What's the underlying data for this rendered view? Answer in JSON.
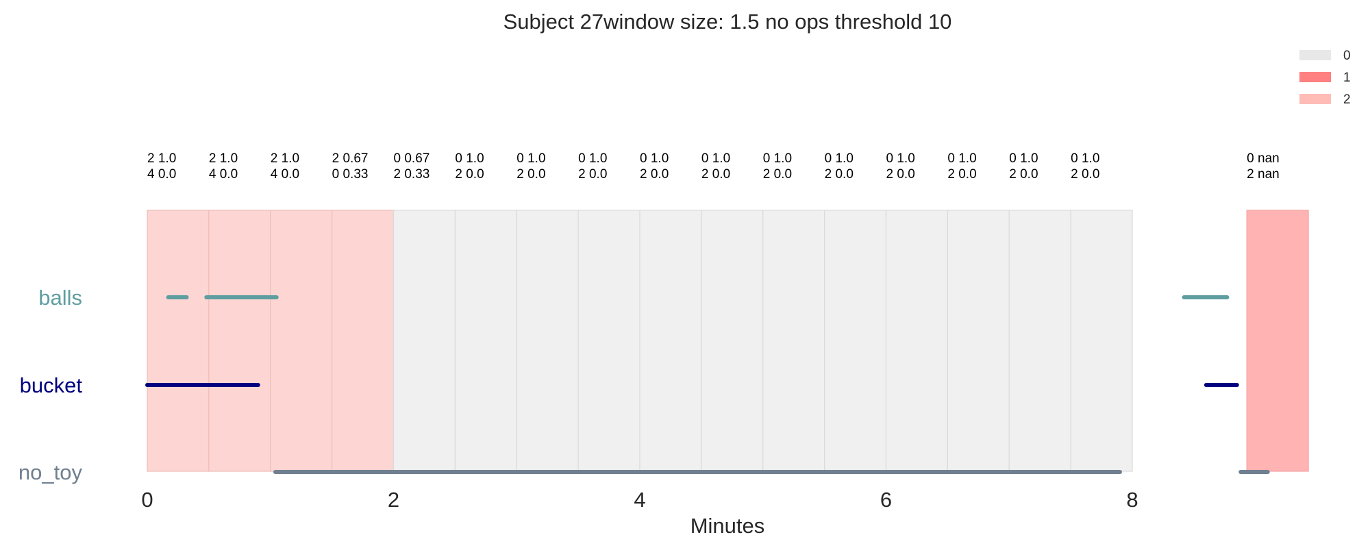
{
  "chart_data": {
    "type": "timeline",
    "title": "Subject 27window size: 1.5 no ops threshold 10",
    "xlabel": "Minutes",
    "xlim": [
      0,
      9.45
    ],
    "x_ticks": [
      0,
      2,
      4,
      6,
      8
    ],
    "grid": false,
    "legend": {
      "placement": "top-right",
      "entries": [
        {
          "label": "0",
          "color": "#e8e8e8"
        },
        {
          "label": "1",
          "color": "#ff8080"
        },
        {
          "label": "2",
          "color": "#ffbcb6"
        }
      ]
    },
    "windows": [
      {
        "start": 0.0,
        "end": 0.5,
        "category": 2,
        "line1": "2 1.0",
        "line2": "4 0.0"
      },
      {
        "start": 0.5,
        "end": 1.0,
        "category": 2,
        "line1": "2 1.0",
        "line2": "4 0.0"
      },
      {
        "start": 1.0,
        "end": 1.5,
        "category": 2,
        "line1": "2 1.0",
        "line2": "4 0.0"
      },
      {
        "start": 1.5,
        "end": 2.0,
        "category": 2,
        "line1": "2 0.67",
        "line2": "0 0.33"
      },
      {
        "start": 2.0,
        "end": 2.5,
        "category": 0,
        "line1": "0 0.67",
        "line2": "2 0.33"
      },
      {
        "start": 2.5,
        "end": 3.0,
        "category": 0,
        "line1": "0 1.0",
        "line2": "2 0.0"
      },
      {
        "start": 3.0,
        "end": 3.5,
        "category": 0,
        "line1": "0 1.0",
        "line2": "2 0.0"
      },
      {
        "start": 3.5,
        "end": 4.0,
        "category": 0,
        "line1": "0 1.0",
        "line2": "2 0.0"
      },
      {
        "start": 4.0,
        "end": 4.5,
        "category": 0,
        "line1": "0 1.0",
        "line2": "2 0.0"
      },
      {
        "start": 4.5,
        "end": 5.0,
        "category": 0,
        "line1": "0 1.0",
        "line2": "2 0.0"
      },
      {
        "start": 5.0,
        "end": 5.5,
        "category": 0,
        "line1": "0 1.0",
        "line2": "2 0.0"
      },
      {
        "start": 5.5,
        "end": 6.0,
        "category": 0,
        "line1": "0 1.0",
        "line2": "2 0.0"
      },
      {
        "start": 6.0,
        "end": 6.5,
        "category": 0,
        "line1": "0 1.0",
        "line2": "2 0.0"
      },
      {
        "start": 6.5,
        "end": 7.0,
        "category": 0,
        "line1": "0 1.0",
        "line2": "2 0.0"
      },
      {
        "start": 7.0,
        "end": 7.5,
        "category": 0,
        "line1": "0 1.0",
        "line2": "2 0.0"
      },
      {
        "start": 7.5,
        "end": 8.0,
        "category": 0,
        "line1": "0 1.0",
        "line2": "2 0.0"
      },
      {
        "start": 8.93,
        "end": 9.43,
        "category": 1,
        "line1": "0 nan",
        "line2": "2 nan"
      }
    ],
    "series": [
      {
        "name": "balls",
        "color": "#5f9ea0",
        "segments": [
          [
            0.17,
            0.32
          ],
          [
            0.48,
            1.05
          ],
          [
            8.42,
            8.77
          ]
        ]
      },
      {
        "name": "bucket",
        "color": "#000080",
        "segments": [
          [
            0.0,
            0.9
          ],
          [
            8.6,
            8.85
          ]
        ]
      },
      {
        "name": "no_toy",
        "color": "#708090",
        "segments": [
          [
            1.04,
            7.9
          ],
          [
            8.88,
            9.1
          ]
        ]
      }
    ]
  }
}
